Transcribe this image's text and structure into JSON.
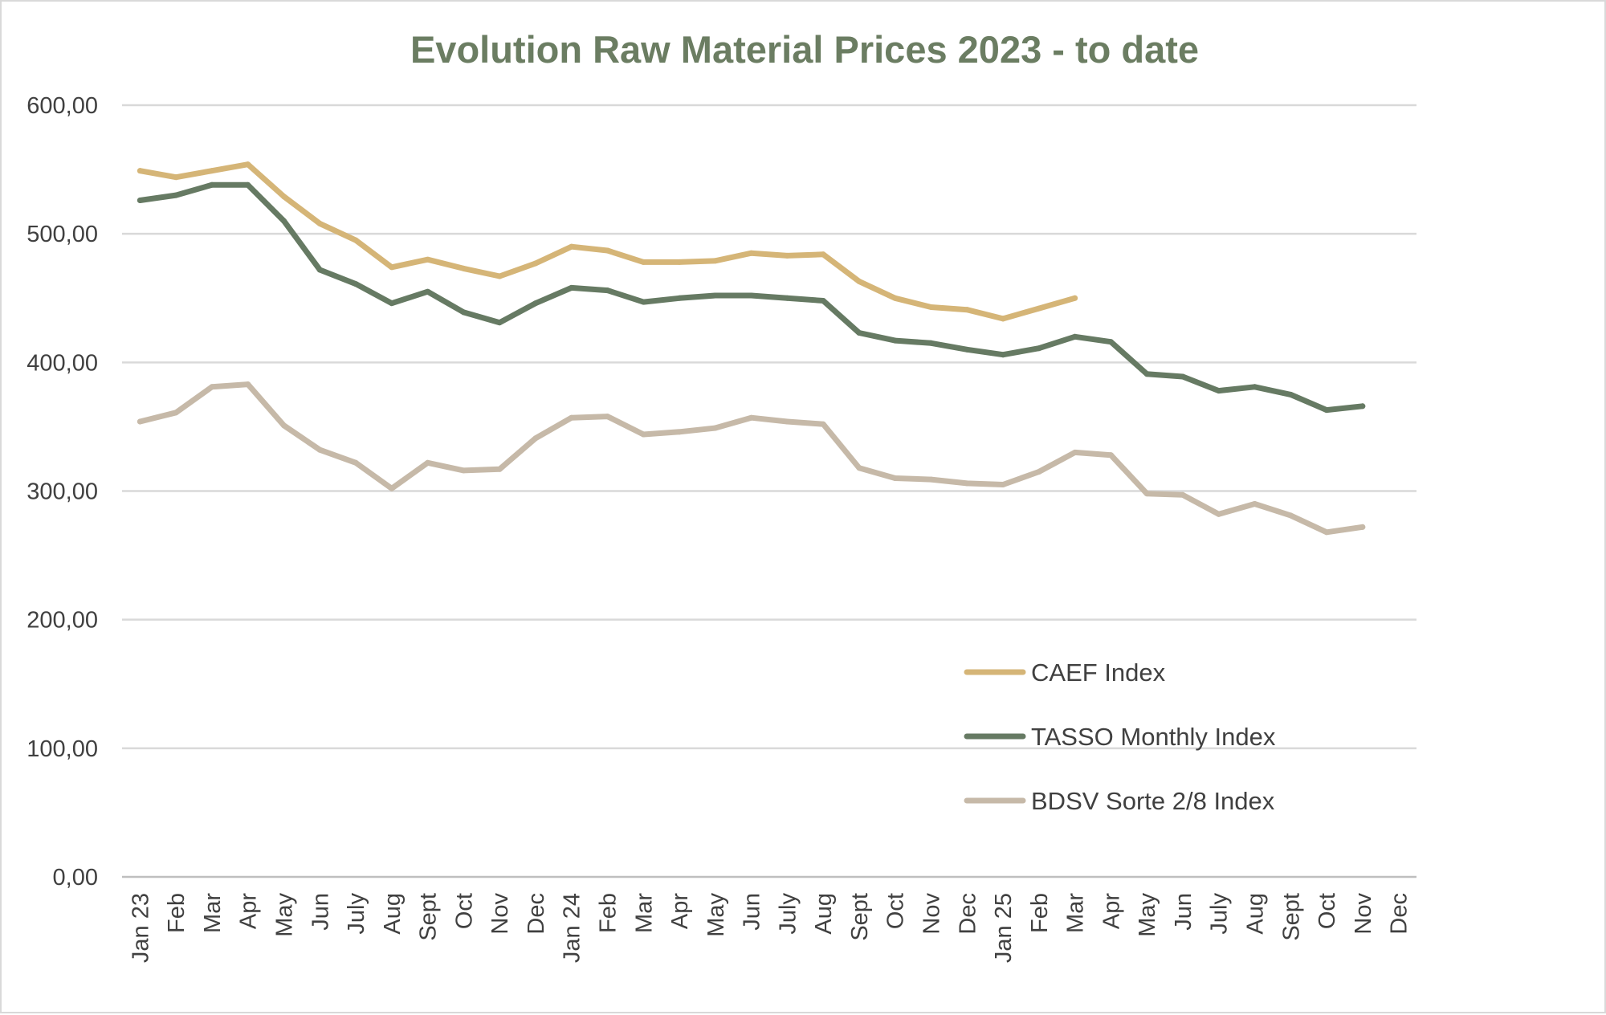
{
  "chart_data": {
    "type": "line",
    "title": "Evolution Raw Material Prices 2023 - to date",
    "xlabel": "",
    "ylabel": "",
    "ylim": [
      0,
      600
    ],
    "y_ticks": [
      0,
      100,
      200,
      300,
      400,
      500,
      600
    ],
    "y_tick_labels": [
      "0,00",
      "100,00",
      "200,00",
      "300,00",
      "400,00",
      "500,00",
      "600,00"
    ],
    "grid": true,
    "legend_position": "center-right",
    "categories": [
      "Jan 23",
      "Feb",
      "Mar",
      "Apr",
      "May",
      "Jun",
      "July",
      "Aug",
      "Sept",
      "Oct",
      "Nov",
      "Dec",
      "Jan 24",
      "Feb",
      "Mar",
      "Apr",
      "May",
      "Jun",
      "July",
      "Aug",
      "Sept",
      "Oct",
      "Nov",
      "Dec",
      "Jan 25",
      "Feb",
      "Mar",
      "Apr",
      "May",
      "Jun",
      "July",
      "Aug",
      "Sept",
      "Oct",
      "Nov",
      "Dec"
    ],
    "series": [
      {
        "name": "CAEF Index",
        "color": "#d5b577",
        "values": [
          549,
          544,
          549,
          554,
          529,
          508,
          495,
          474,
          480,
          473,
          467,
          477,
          490,
          487,
          478,
          478,
          479,
          485,
          483,
          484,
          463,
          450,
          443,
          441,
          434,
          442,
          450,
          null,
          null,
          null,
          null,
          null,
          null,
          null,
          null,
          null
        ]
      },
      {
        "name": "TASSO Monthly Index",
        "color": "#667a63",
        "values": [
          526,
          530,
          538,
          538,
          510,
          472,
          461,
          446,
          455,
          439,
          431,
          446,
          458,
          456,
          447,
          450,
          452,
          452,
          450,
          448,
          423,
          417,
          415,
          410,
          406,
          411,
          420,
          416,
          391,
          389,
          378,
          381,
          375,
          363,
          366,
          null
        ]
      },
      {
        "name": "BDSV Sorte 2/8 Index",
        "color": "#c6b9a8",
        "values": [
          354,
          361,
          381,
          383,
          351,
          332,
          322,
          302,
          322,
          316,
          317,
          341,
          357,
          358,
          344,
          346,
          349,
          357,
          354,
          352,
          318,
          310,
          309,
          306,
          305,
          315,
          330,
          328,
          298,
          297,
          282,
          290,
          281,
          268,
          272,
          null
        ]
      }
    ]
  }
}
